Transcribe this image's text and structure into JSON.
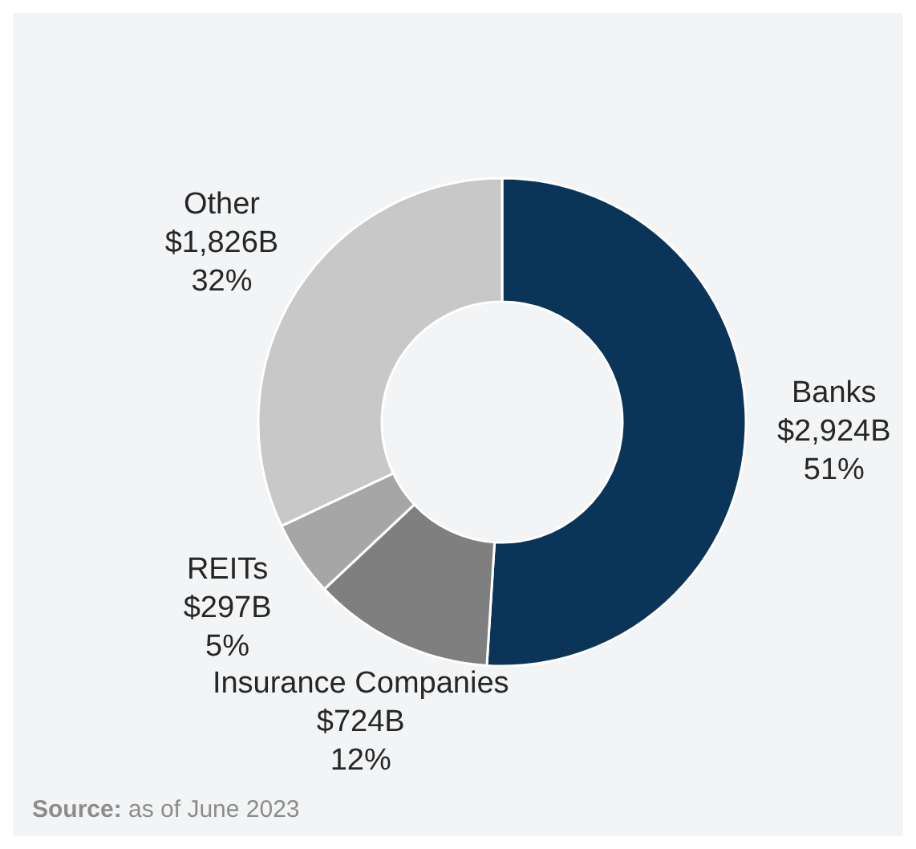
{
  "chart_data": {
    "type": "donut",
    "categories": [
      "Banks",
      "Insurance Companies",
      "REITs",
      "Other"
    ],
    "values": [
      51,
      12,
      5,
      32
    ],
    "colors": [
      "#0b3558",
      "#7f7f7f",
      "#a6a6a6",
      "#c8c8c8"
    ],
    "value_labels": [
      "$2,924B\n51%",
      "$724B\n12%",
      "$297B\n5%",
      "$1,826B\n32%"
    ],
    "annotations": [
      "Source: as of June 2023"
    ]
  }
}
